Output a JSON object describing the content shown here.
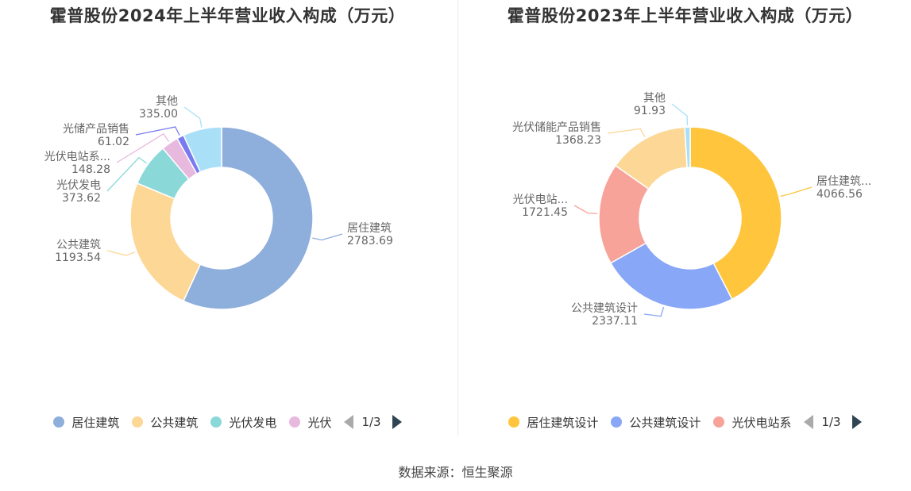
{
  "source": "数据来源：恒生聚源",
  "chart_data": [
    {
      "type": "pie",
      "title": "霍普股份2024年上半年营业收入构成（万元）",
      "unit": "万元",
      "slices": [
        {
          "name": "居住建筑",
          "label": "居住建筑",
          "value": 2783.69,
          "value_label": "2783.69",
          "color": "#8eaedb"
        },
        {
          "name": "公共建筑",
          "label": "公共建筑",
          "value": 1193.54,
          "value_label": "1193.54",
          "color": "#fdd796"
        },
        {
          "name": "光伏发电",
          "label": "光伏发电",
          "value": 373.62,
          "value_label": "373.62",
          "color": "#8ad8d8"
        },
        {
          "name": "光伏电站系",
          "label": "光伏电站系...",
          "value": 148.28,
          "value_label": "148.28",
          "color": "#e8b9df"
        },
        {
          "name": "光储产品销售",
          "label": "光储产品销售",
          "value": 61.02,
          "value_label": "61.02",
          "color": "#7a7af0"
        },
        {
          "name": "其他",
          "label": "其他",
          "value": 335.0,
          "value_label": "335.00",
          "color": "#a9e0f8"
        }
      ],
      "legend": {
        "items": [
          "居住建筑",
          "公共建筑",
          "光伏发电",
          "光伏"
        ],
        "page": "1/3",
        "position": "bottom"
      }
    },
    {
      "type": "pie",
      "title": "霍普股份2023年上半年营业收入构成（万元）",
      "unit": "万元",
      "slices": [
        {
          "name": "居住建筑设计",
          "label": "居住建筑...",
          "value": 4066.56,
          "value_label": "4066.56",
          "color": "#ffc53d"
        },
        {
          "name": "公共建筑设计",
          "label": "公共建筑设计",
          "value": 2337.11,
          "value_label": "2337.11",
          "color": "#88a7f7"
        },
        {
          "name": "光伏电站系",
          "label": "光伏电站...",
          "value": 1721.45,
          "value_label": "1721.45",
          "color": "#f7a39a"
        },
        {
          "name": "光伏储能产品销售",
          "label": "光伏储能产品销售",
          "value": 1368.23,
          "value_label": "1368.23",
          "color": "#fdd796"
        },
        {
          "name": "其他",
          "label": "其他",
          "value": 91.93,
          "value_label": "91.93",
          "color": "#a9e0f8"
        }
      ],
      "legend": {
        "items": [
          "居住建筑设计",
          "公共建筑设计",
          "光伏电站系"
        ],
        "page": "1/3",
        "position": "bottom"
      }
    }
  ]
}
